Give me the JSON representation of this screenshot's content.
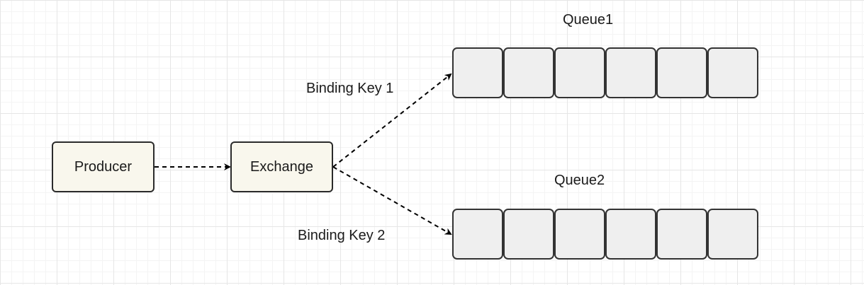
{
  "diagram": {
    "producer": {
      "label": "Producer"
    },
    "exchange": {
      "label": "Exchange"
    },
    "queues": [
      {
        "name": "Queue1",
        "cell_count": 6
      },
      {
        "name": "Queue2",
        "cell_count": 6
      }
    ],
    "bindings": [
      {
        "label": "Binding Key 1",
        "target": "Queue1"
      },
      {
        "label": "Binding Key 2",
        "target": "Queue2"
      }
    ]
  },
  "colors": {
    "node_fill": "#f9f7ed",
    "queue_cell_fill": "#efefef",
    "stroke": "#2b2b2b"
  }
}
